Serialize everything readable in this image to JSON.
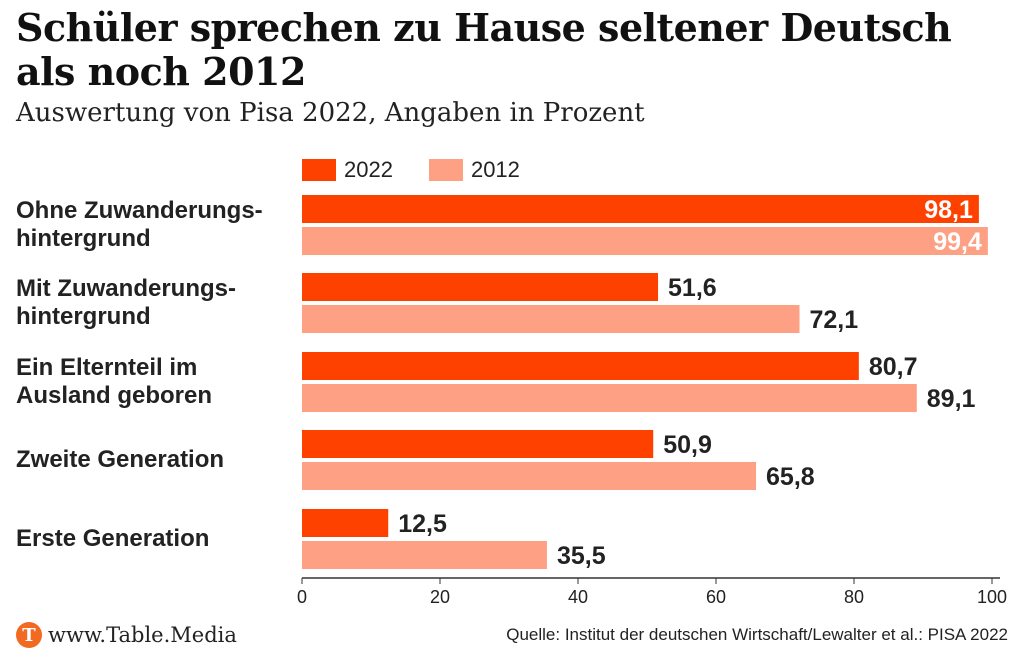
{
  "header": {
    "title": "Schüler sprechen zu Hause seltener Deutsch als noch 2012",
    "subtitle": "Auswertung von Pisa 2022, Angaben in Prozent"
  },
  "legend": [
    {
      "label": "2022",
      "color": "#ff4100"
    },
    {
      "label": "2012",
      "color": "#fda083"
    }
  ],
  "categories": [
    {
      "label": "Ohne Zuwanderungs-hintergrund"
    },
    {
      "label": "Mit Zuwanderungs-hintergrund"
    },
    {
      "label": "Ein Elternteil im Ausland geboren"
    },
    {
      "label": "Zweite Generation"
    },
    {
      "label": "Erste Generation"
    }
  ],
  "chart_data": {
    "type": "bar",
    "orientation": "horizontal",
    "title": "Schüler sprechen zu Hause seltener Deutsch als noch 2012",
    "subtitle": "Auswertung von Pisa 2022, Angaben in Prozent",
    "categories": [
      "Ohne Zuwanderungs-hintergrund",
      "Mit Zuwanderungs-hintergrund",
      "Ein Elternteil im Ausland geboren",
      "Zweite Generation",
      "Erste Generation"
    ],
    "series": [
      {
        "name": "2022",
        "values": [
          98.1,
          51.6,
          80.7,
          50.9,
          12.5
        ],
        "labels": [
          "98,1",
          "51,6",
          "80,7",
          "50,9",
          "12,5"
        ]
      },
      {
        "name": "2012",
        "values": [
          99.4,
          72.1,
          89.1,
          65.8,
          35.5
        ],
        "labels": [
          "99,4",
          "72,1",
          "89,1",
          "65,8",
          "35,5"
        ]
      }
    ],
    "xlim": [
      0,
      100
    ],
    "xticks": [
      0,
      20,
      40,
      60,
      80,
      100
    ],
    "grid": false,
    "legend_position": "top-left"
  },
  "footer": {
    "brand": "www.Table.Media",
    "logo_letter": "T",
    "source": "Quelle: Institut der deutschen Wirtschaft/Lewalter et al.: PISA 2022"
  }
}
